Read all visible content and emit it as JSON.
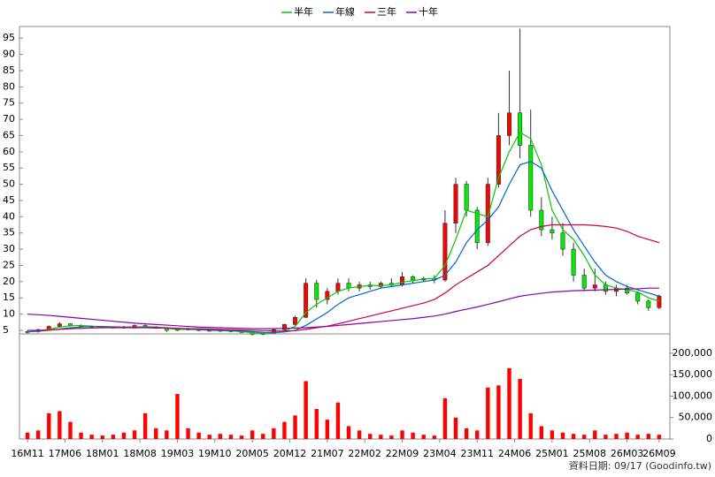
{
  "chart_data": {
    "type": "candlestick",
    "up_color": "#ff0000",
    "down_color": "#00ee00",
    "volume_color": "#ff0000",
    "source": "資料日期: 09/17 (Goodinfo.tw)",
    "xlim": [
      -1.5,
      120
    ],
    "xticks": [
      {
        "value": 0,
        "label": "16M11"
      },
      {
        "value": 7,
        "label": "17M06"
      },
      {
        "value": 14,
        "label": "18M01"
      },
      {
        "value": 21,
        "label": "18M08"
      },
      {
        "value": 28,
        "label": "19M03"
      },
      {
        "value": 35,
        "label": "19M10"
      },
      {
        "value": 42,
        "label": "20M05"
      },
      {
        "value": 49,
        "label": "20M12"
      },
      {
        "value": 56,
        "label": "21M07"
      },
      {
        "value": 63,
        "label": "22M02"
      },
      {
        "value": 70,
        "label": "22M09"
      },
      {
        "value": 77,
        "label": "23M04"
      },
      {
        "value": 84,
        "label": "23M11"
      },
      {
        "value": 91,
        "label": "24M06"
      },
      {
        "value": 98,
        "label": "25M01"
      },
      {
        "value": 105,
        "label": "25M08"
      },
      {
        "value": 112,
        "label": "26M03"
      },
      {
        "value": 118,
        "label": "26M09"
      }
    ],
    "ylim": [
      3.9,
      98.6
    ],
    "yticks": [
      5,
      10,
      15,
      20,
      25,
      30,
      35,
      40,
      45,
      50,
      55,
      60,
      65,
      70,
      75,
      80,
      85,
      90,
      95
    ],
    "y2lim": [
      0,
      245000
    ],
    "y2ticks": [
      0,
      {
        "value": 50000,
        "label": "50,000"
      },
      {
        "value": 100000,
        "label": "100,000"
      },
      {
        "value": 150000,
        "label": "150,000"
      },
      {
        "value": 200000,
        "label": "200,000"
      }
    ],
    "candles": {
      "x": [
        0,
        2,
        4,
        6,
        8,
        10,
        12,
        14,
        16,
        18,
        20,
        22,
        24,
        26,
        28,
        30,
        32,
        34,
        36,
        38,
        40,
        42,
        44,
        46,
        48,
        50,
        52,
        54,
        56,
        58,
        60,
        62,
        64,
        66,
        68,
        70,
        72,
        74,
        76,
        78,
        80,
        82,
        84,
        86,
        88,
        90,
        92,
        94,
        96,
        98,
        100,
        102,
        104,
        106,
        108,
        110,
        112,
        114,
        116,
        118
      ],
      "open": [
        4.5,
        4.6,
        5.2,
        6.2,
        7,
        6.5,
        6.2,
        6,
        5.8,
        6,
        5.7,
        6.5,
        6.1,
        5.6,
        5,
        5.4,
        5.2,
        5,
        4.8,
        5,
        4.6,
        4.4,
        3.8,
        4.1,
        5.2,
        6.8,
        9,
        19.5,
        14.5,
        17,
        19.5,
        18,
        19,
        18.5,
        19.5,
        19,
        21.5,
        20.5,
        21,
        20.5,
        38,
        50,
        42,
        32,
        50,
        65,
        72,
        62,
        42,
        36,
        35,
        30,
        22,
        18,
        19,
        17,
        18,
        16.5,
        14,
        12
      ],
      "high": [
        5,
        5.5,
        6.5,
        7.5,
        7.2,
        6.8,
        6.5,
        6.3,
        6.2,
        6.4,
        6.8,
        6.8,
        6.3,
        5.8,
        5.6,
        5.8,
        5.5,
        5.3,
        5.2,
        5.2,
        4.9,
        4.6,
        4.3,
        5.5,
        7,
        9.5,
        21,
        20.5,
        18,
        21,
        21,
        20,
        20,
        20,
        21,
        23,
        22,
        21.5,
        22,
        42,
        52,
        51,
        43,
        52,
        72,
        85,
        98,
        73,
        46,
        40,
        38,
        32,
        24,
        24,
        20,
        19,
        19,
        17,
        14.5,
        16
      ],
      "low": [
        4,
        4.3,
        5,
        6,
        6.2,
        6,
        5.8,
        5.6,
        5.5,
        5.5,
        5.5,
        6,
        5.5,
        4.5,
        4.8,
        5,
        4.8,
        4.6,
        4.5,
        4.4,
        4.2,
        3.4,
        3.5,
        4,
        5,
        6.5,
        8.8,
        12,
        13,
        16,
        17,
        17,
        17.5,
        18,
        18.5,
        18.5,
        19.5,
        20,
        19.5,
        20,
        35,
        40,
        30,
        31,
        49,
        62,
        58,
        40,
        34,
        33,
        28,
        20,
        17,
        17,
        16,
        15.5,
        16,
        13,
        11,
        11.5
      ],
      "close": [
        4.6,
        5.2,
        6.2,
        7,
        6.5,
        6.2,
        6,
        5.8,
        6,
        5.7,
        6.5,
        6.1,
        5.6,
        5,
        5.4,
        5.2,
        5,
        4.8,
        5,
        4.6,
        4.4,
        3.8,
        4.1,
        5.2,
        6.8,
        9,
        19.5,
        14.5,
        17,
        19.5,
        18,
        19,
        18.5,
        19.5,
        19,
        21.5,
        20.5,
        21,
        20.5,
        38,
        50,
        42,
        32,
        50,
        65,
        72,
        62,
        42,
        36,
        35,
        30,
        22,
        18,
        19,
        17,
        18,
        16.5,
        14,
        12,
        15.5
      ],
      "volume": [
        15000,
        20000,
        60000,
        65000,
        40000,
        15000,
        10000,
        8000,
        10000,
        15000,
        20000,
        60000,
        25000,
        20000,
        105000,
        25000,
        15000,
        10000,
        12000,
        10000,
        8000,
        20000,
        12000,
        25000,
        40000,
        55000,
        135000,
        70000,
        45000,
        85000,
        30000,
        20000,
        12000,
        10000,
        8000,
        20000,
        15000,
        10000,
        8000,
        95000,
        50000,
        25000,
        20000,
        120000,
        125000,
        165000,
        140000,
        60000,
        30000,
        20000,
        15000,
        12000,
        10000,
        20000,
        10000,
        12000,
        15000,
        10000,
        12000,
        10000
      ]
    },
    "series": [
      {
        "name": "半年",
        "color": "#00cc00",
        "values": [
          4.5,
          4.8,
          5.3,
          6,
          6.4,
          6.5,
          6.3,
          6,
          5.9,
          5.9,
          6,
          6.1,
          6,
          5.6,
          5.3,
          5.3,
          5.2,
          5,
          4.9,
          4.8,
          4.6,
          4.3,
          4.1,
          4.2,
          4.8,
          6.2,
          10.5,
          13,
          15,
          17,
          18,
          18.5,
          18.8,
          18.8,
          19,
          19.8,
          20.3,
          20.8,
          21,
          25,
          33,
          42,
          41,
          40,
          52,
          60,
          66,
          64,
          56,
          42,
          36,
          33,
          28,
          22,
          19,
          18,
          17.5,
          16.8,
          15,
          14
        ]
      },
      {
        "name": "年線",
        "color": "#0066cc",
        "values": [
          4.6,
          4.7,
          5,
          5.4,
          5.8,
          6,
          6.2,
          6.2,
          6.1,
          6,
          6,
          6,
          5.9,
          5.8,
          5.6,
          5.4,
          5.3,
          5.1,
          5,
          4.9,
          4.8,
          4.6,
          4.4,
          4.3,
          4.5,
          5,
          6.5,
          8.5,
          10.5,
          13,
          15,
          16,
          17,
          18,
          18.5,
          19,
          19.5,
          20,
          20.5,
          22,
          26,
          32,
          36,
          39,
          43,
          50,
          56,
          57,
          55,
          48,
          42,
          36,
          31,
          26,
          22,
          20,
          18.5,
          17.5,
          16.5,
          15.5
        ]
      },
      {
        "name": "三年",
        "color": "#cc0044",
        "values": [
          5,
          5,
          5.1,
          5.3,
          5.5,
          5.6,
          5.7,
          5.8,
          5.8,
          5.8,
          5.8,
          5.8,
          5.7,
          5.7,
          5.6,
          5.5,
          5.5,
          5.4,
          5.3,
          5.2,
          5.1,
          5,
          4.9,
          4.8,
          4.8,
          4.9,
          5.3,
          5.8,
          6.3,
          7,
          7.8,
          8.6,
          9.4,
          10.2,
          11,
          11.8,
          12.6,
          13.4,
          14.5,
          16.5,
          19,
          21,
          23,
          25,
          28,
          31,
          34,
          36,
          37,
          37.5,
          37.5,
          37.5,
          37.5,
          37.3,
          37,
          36.5,
          35.5,
          34,
          33,
          32
        ]
      },
      {
        "name": "十年",
        "color": "#8800aa",
        "values": [
          10,
          9.8,
          9.6,
          9.3,
          9,
          8.7,
          8.4,
          8.1,
          7.8,
          7.5,
          7.2,
          7,
          6.8,
          6.6,
          6.4,
          6.2,
          6,
          5.9,
          5.8,
          5.7,
          5.6,
          5.5,
          5.5,
          5.5,
          5.6,
          5.7,
          5.8,
          6,
          6.2,
          6.5,
          6.8,
          7.1,
          7.4,
          7.7,
          8,
          8.3,
          8.6,
          9,
          9.4,
          10,
          10.8,
          11.5,
          12.2,
          13,
          13.8,
          14.7,
          15.5,
          16,
          16.4,
          16.8,
          17,
          17.2,
          17.3,
          17.4,
          17.5,
          17.6,
          17.7,
          17.8,
          18,
          18
        ]
      }
    ]
  }
}
